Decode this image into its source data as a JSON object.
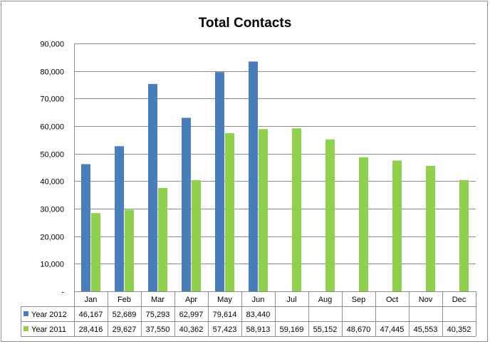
{
  "chart_data": {
    "type": "bar",
    "title": "Total Contacts",
    "categories": [
      "Jan",
      "Feb",
      "Mar",
      "Apr",
      "May",
      "Jun",
      "Jul",
      "Aug",
      "Sep",
      "Oct",
      "Nov",
      "Dec"
    ],
    "series": [
      {
        "name": "Year 2012",
        "color": "#4a7ebb",
        "values": [
          46167,
          52689,
          75293,
          62997,
          79614,
          83440,
          null,
          null,
          null,
          null,
          null,
          null
        ],
        "labels": [
          "46,167",
          "52,689",
          "75,293",
          "62,997",
          "79,614",
          "83,440",
          "",
          "",
          "",
          "",
          "",
          ""
        ]
      },
      {
        "name": "Year 2011",
        "color": "#8fd14f",
        "values": [
          28416,
          29627,
          37550,
          40362,
          57423,
          58913,
          59169,
          55152,
          48670,
          47445,
          45553,
          40352
        ],
        "labels": [
          "28,416",
          "29,627",
          "37,550",
          "40,362",
          "57,423",
          "58,913",
          "59,169",
          "55,152",
          "48,670",
          "47,445",
          "45,553",
          "40,352"
        ]
      }
    ],
    "ylim": [
      0,
      90000
    ],
    "yticks": [
      0,
      10000,
      20000,
      30000,
      40000,
      50000,
      60000,
      70000,
      80000,
      90000
    ],
    "ytick_labels": [
      "-",
      "10,000",
      "20,000",
      "30,000",
      "40,000",
      "50,000",
      "60,000",
      "70,000",
      "80,000",
      "90,000"
    ],
    "grid": true,
    "legend": "data-table",
    "data_table": true
  }
}
